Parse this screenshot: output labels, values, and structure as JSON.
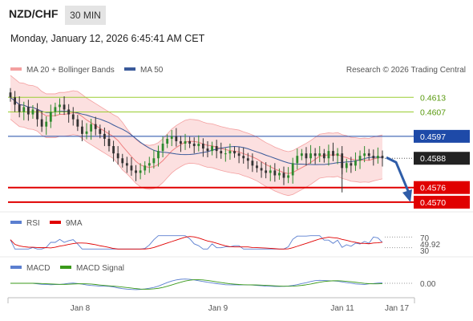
{
  "header": {
    "pair": "NZD/CHF",
    "timeframe": "30 MIN",
    "datetime": "Monday, January 12, 2026 6:45:41 AM CET"
  },
  "colors": {
    "bollinger": "#f4a0a0",
    "bollinger_fill": "#fbd6d6",
    "ma20": "#f08080",
    "ma50": "#3a5a9a",
    "up_candle": "#2e8b2e",
    "down_candle": "#333333",
    "green_level": "#9acd32",
    "blue_level": "#1e4aa8",
    "red_level": "#e00000",
    "rsi": "#5b7fd0",
    "rsi_ma": "#e00000",
    "macd": "#5b7fd0",
    "macd_signal": "#3a9a1a",
    "arrow": "#2f5da8"
  },
  "chart_data": [
    {
      "type": "candlestick",
      "legend": [
        "MA 20 + Bollinger Bands",
        "MA 50"
      ],
      "watermark": "Research © 2026 Trading Central",
      "ylim": [
        0.4568,
        0.462
      ],
      "x_ticks": [
        "Jan 8",
        "Jan 9",
        "Jan 11",
        "Jan 17"
      ],
      "levels": [
        {
          "value": 0.4613,
          "label": "0.4613",
          "kind": "resistance",
          "color": "green"
        },
        {
          "value": 0.4607,
          "label": "0.4607",
          "kind": "resistance",
          "color": "green"
        },
        {
          "value": 0.4597,
          "label": "0.4597",
          "kind": "pivot",
          "color": "blue"
        },
        {
          "value": 0.4588,
          "label": "0.4588",
          "kind": "last",
          "color": "black"
        },
        {
          "value": 0.4576,
          "label": "0.4576",
          "kind": "support",
          "color": "red"
        },
        {
          "value": 0.457,
          "label": "0.4570",
          "kind": "support",
          "color": "red"
        }
      ],
      "forecast": {
        "from": 0.4588,
        "to": 0.457,
        "direction": "down"
      },
      "close_series": [
        0.4613,
        0.461,
        0.4607,
        0.4609,
        0.4606,
        0.4608,
        0.4604,
        0.4601,
        0.4603,
        0.4607,
        0.4609,
        0.461,
        0.4608,
        0.4606,
        0.4604,
        0.4601,
        0.4598,
        0.4599,
        0.4602,
        0.46,
        0.4598,
        0.4596,
        0.4593,
        0.459,
        0.4588,
        0.4586,
        0.4585,
        0.4583,
        0.4582,
        0.4583,
        0.4585,
        0.4586,
        0.4588,
        0.4591,
        0.4594,
        0.4596,
        0.4597,
        0.4595,
        0.4594,
        0.4595,
        0.4594,
        0.4593,
        0.4594,
        0.4592,
        0.4591,
        0.4593,
        0.4591,
        0.459,
        0.459,
        0.4591,
        0.459,
        0.4589,
        0.4588,
        0.4587,
        0.4585,
        0.4584,
        0.4583,
        0.4582,
        0.4583,
        0.4581,
        0.4582,
        0.458,
        0.4581,
        0.4586,
        0.4589,
        0.459,
        0.4588,
        0.459,
        0.4589,
        0.459,
        0.4588,
        0.4591,
        0.4589,
        0.459,
        0.4584,
        0.4586,
        0.4585,
        0.4587,
        0.4589,
        0.459,
        0.4589,
        0.4588,
        0.4589,
        0.4588
      ]
    },
    {
      "type": "line",
      "legend": [
        "RSI",
        "9MA"
      ],
      "ticks": [
        "70",
        "30"
      ],
      "ylim": [
        20,
        80
      ],
      "last_value": 49.92,
      "last_label": "49.92"
    },
    {
      "type": "line",
      "legend": [
        "MACD",
        "MACD Signal"
      ],
      "last_value": 0.0,
      "last_label": "0.00"
    }
  ]
}
